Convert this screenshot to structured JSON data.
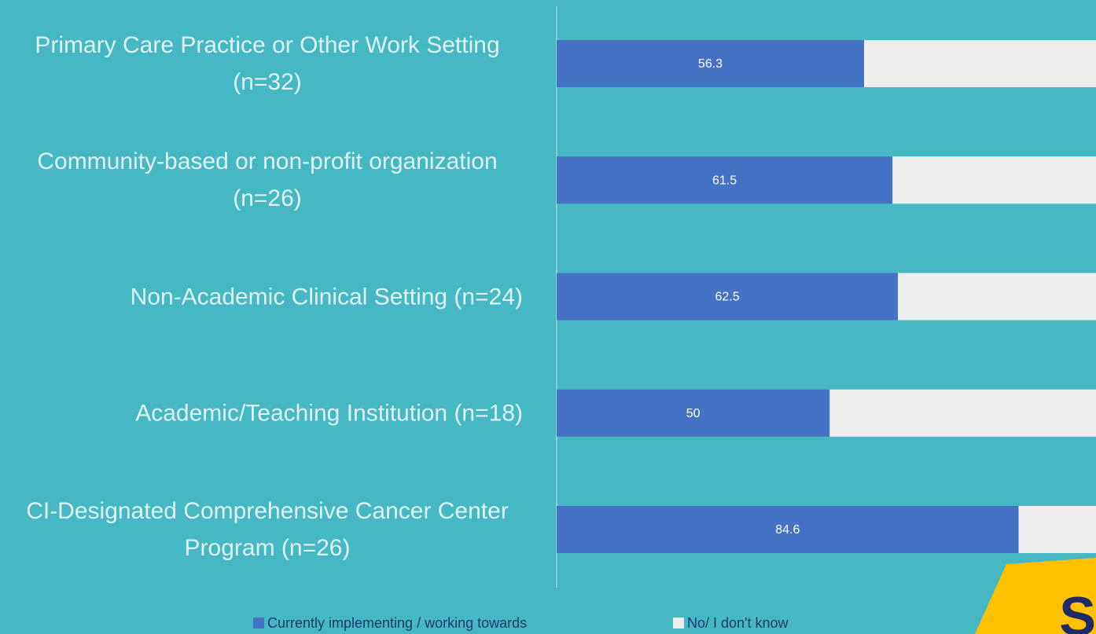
{
  "chart_data": {
    "type": "stacked-barh",
    "categories": [
      "Primary Care Practice or Other Work Setting (n=32)",
      "Community-based or non-profit organization (n=26)",
      "Non-Academic Clinical Setting (n=24)",
      "Academic/Teaching Institution (n=18)",
      "CI-Designated Comprehensive Cancer Center Program (n=26)"
    ],
    "series": [
      {
        "name": "Currently implementing / working towards",
        "color": "#4472c4",
        "values": [
          56.3,
          61.5,
          62.5,
          50,
          84.6
        ]
      },
      {
        "name": "No/ I don't know",
        "color": "#ededed",
        "values": [
          43.7,
          38.5,
          37.5,
          50,
          15.4
        ]
      }
    ],
    "xlim": [
      0,
      100
    ],
    "legend": "bottom",
    "logo": "S"
  }
}
